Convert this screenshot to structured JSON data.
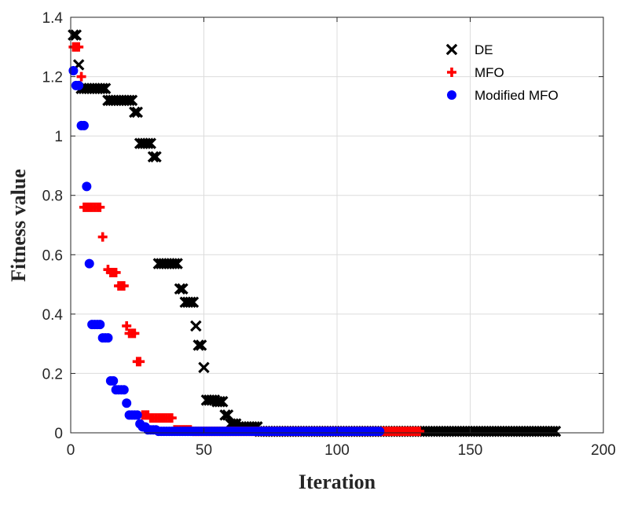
{
  "chart_data": {
    "type": "scatter",
    "title": "",
    "xlabel": "Iteration",
    "ylabel": "Fitness value",
    "xlim": [
      0,
      200
    ],
    "ylim": [
      0,
      1.4
    ],
    "xticks": [
      0,
      50,
      100,
      150,
      200
    ],
    "yticks": [
      0,
      0.2,
      0.4,
      0.6,
      0.8,
      1,
      1.2,
      1.4
    ],
    "xtick_labels": [
      "0",
      "50",
      "100",
      "150",
      "200"
    ],
    "ytick_labels": [
      "0",
      "0.2",
      "0.4",
      "0.6",
      "0.8",
      "1",
      "1.2",
      "1.4"
    ],
    "grid": true,
    "legend_position": "top-right",
    "series": [
      {
        "name": "DE",
        "marker": "x",
        "color": "#000000",
        "segments": [
          [
            1,
            2,
            1.34
          ],
          [
            3,
            3,
            1.24
          ],
          [
            4,
            13,
            1.16
          ],
          [
            14,
            23,
            1.12
          ],
          [
            24,
            25,
            1.08
          ],
          [
            26,
            30,
            0.975
          ],
          [
            31,
            32,
            0.93
          ],
          [
            33,
            40,
            0.57
          ],
          [
            41,
            42,
            0.485
          ],
          [
            43,
            46,
            0.44
          ],
          [
            47,
            47,
            0.36
          ],
          [
            48,
            49,
            0.295
          ],
          [
            50,
            50,
            0.22
          ],
          [
            51,
            54,
            0.11
          ],
          [
            55,
            57,
            0.105
          ],
          [
            58,
            59,
            0.06
          ],
          [
            60,
            62,
            0.03
          ],
          [
            63,
            70,
            0.02
          ],
          [
            71,
            182,
            0.005
          ]
        ]
      },
      {
        "name": "MFO",
        "marker": "+",
        "color": "#ff0000",
        "segments": [
          [
            1,
            3,
            1.3
          ],
          [
            4,
            4,
            1.2
          ],
          [
            5,
            11,
            0.76
          ],
          [
            12,
            12,
            0.66
          ],
          [
            14,
            14,
            0.55
          ],
          [
            15,
            17,
            0.54
          ],
          [
            18,
            20,
            0.495
          ],
          [
            21,
            21,
            0.36
          ],
          [
            22,
            24,
            0.335
          ],
          [
            25,
            26,
            0.24
          ],
          [
            27,
            29,
            0.06
          ],
          [
            30,
            31,
            0.05
          ],
          [
            32,
            38,
            0.05
          ],
          [
            39,
            45,
            0.01
          ],
          [
            46,
            131,
            0.005
          ]
        ]
      },
      {
        "name": "Modified MFO",
        "marker": "circle",
        "color": "#0000ff",
        "segments": [
          [
            1,
            1,
            1.22
          ],
          [
            2,
            3,
            1.17
          ],
          [
            4,
            5,
            1.035
          ],
          [
            6,
            6,
            0.83
          ],
          [
            7,
            7,
            0.57
          ],
          [
            8,
            11,
            0.365
          ],
          [
            12,
            14,
            0.32
          ],
          [
            15,
            16,
            0.175
          ],
          [
            17,
            20,
            0.145
          ],
          [
            21,
            21,
            0.1
          ],
          [
            22,
            25,
            0.06
          ],
          [
            26,
            26,
            0.03
          ],
          [
            27,
            28,
            0.02
          ],
          [
            29,
            32,
            0.01
          ],
          [
            33,
            116,
            0.005
          ]
        ]
      }
    ]
  }
}
